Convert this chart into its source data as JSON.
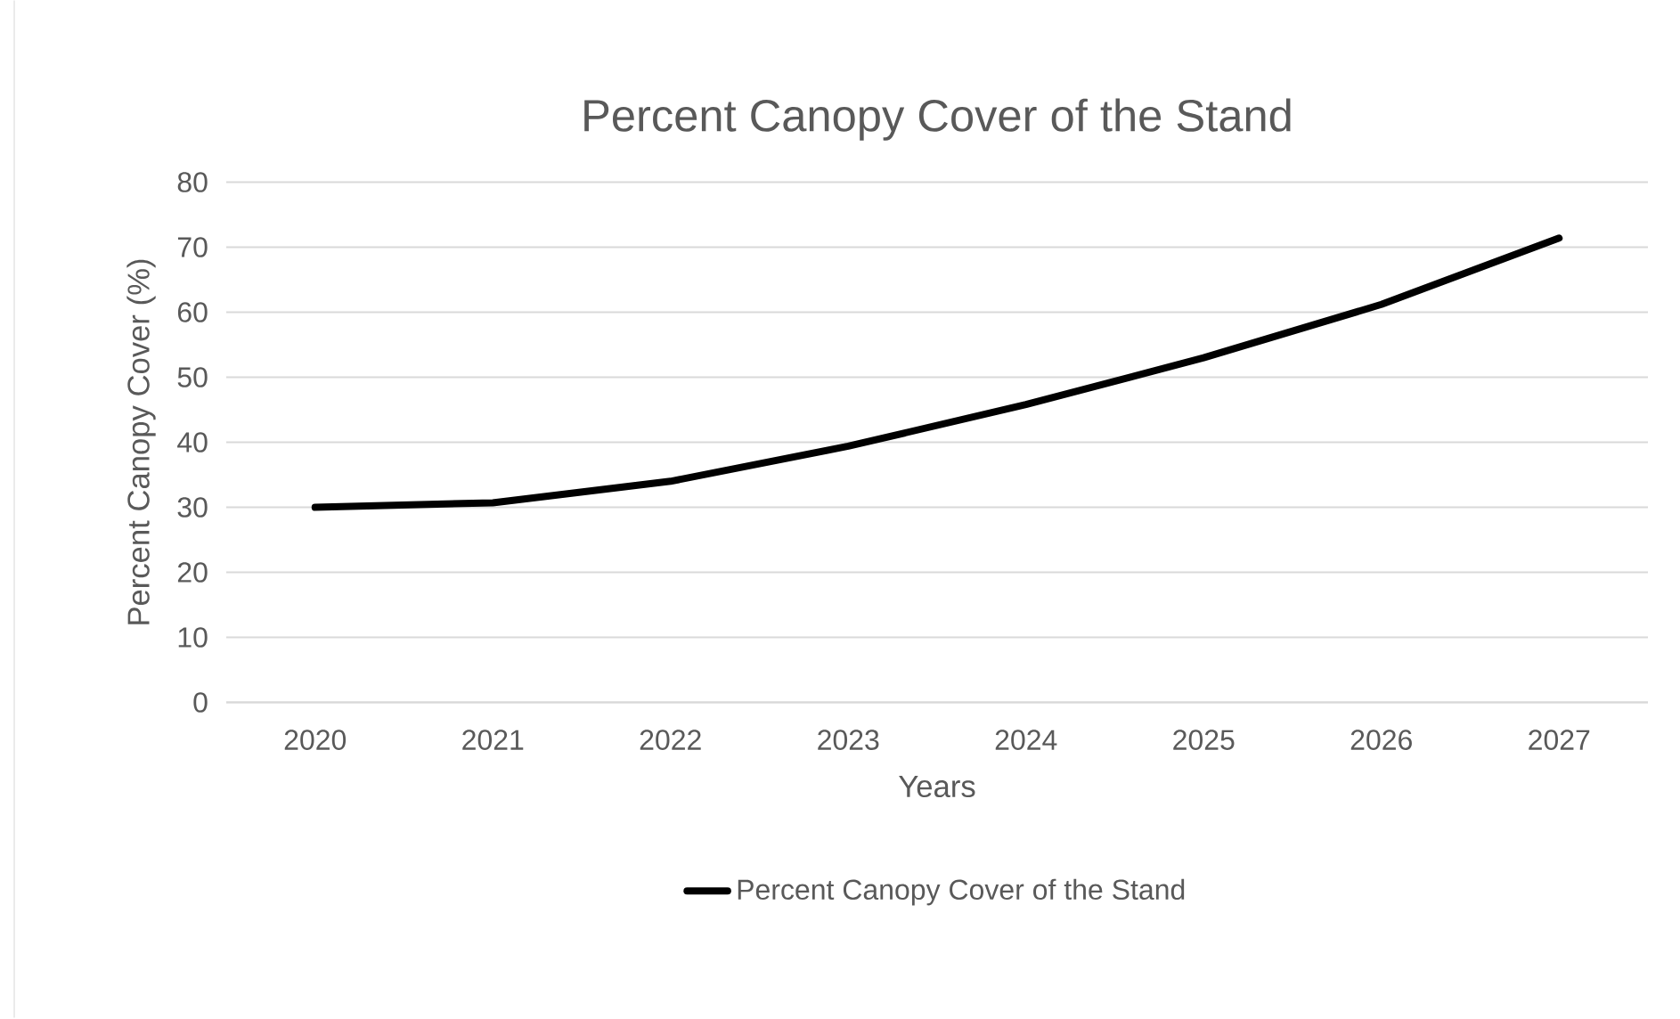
{
  "chart_data": {
    "type": "line",
    "title": "Percent Canopy Cover of the Stand",
    "xlabel": "Years",
    "ylabel": "Percent Canopy Cover (%)",
    "categories": [
      "2020",
      "2021",
      "2022",
      "2023",
      "2024",
      "2025",
      "2026",
      "2027"
    ],
    "series": [
      {
        "name": "Percent Canopy Cover of the Stand",
        "color": "#000000",
        "values": [
          30,
          30.7,
          34,
          39.4,
          45.8,
          53,
          61.2,
          71.4
        ]
      }
    ],
    "ylim": [
      0,
      80
    ],
    "yticks": [
      0,
      10,
      20,
      30,
      40,
      50,
      60,
      70,
      80
    ],
    "grid": "y",
    "legend": "bottom",
    "marker": "none",
    "line_style": "solid"
  }
}
